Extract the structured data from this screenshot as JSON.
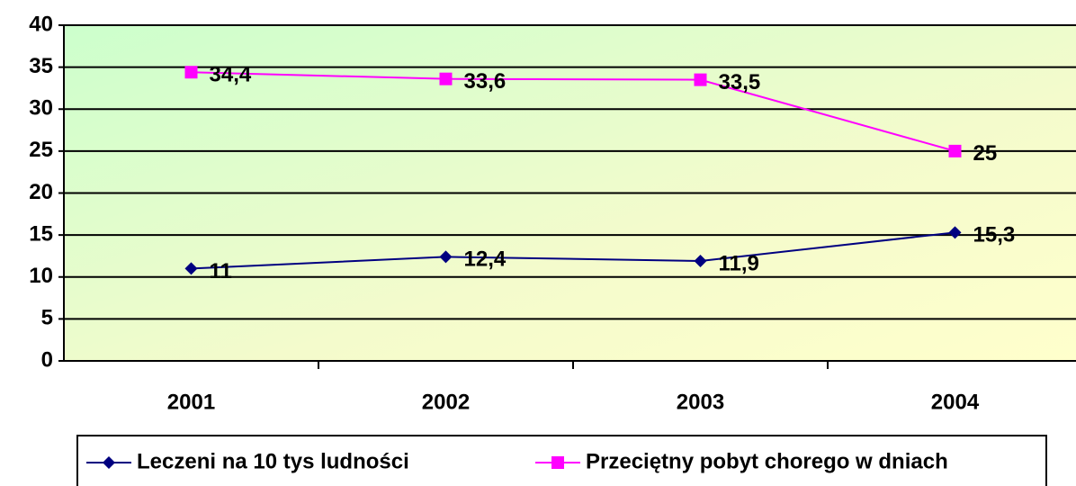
{
  "chart_data": {
    "type": "line",
    "categories": [
      "2001",
      "2002",
      "2003",
      "2004"
    ],
    "series": [
      {
        "name": "Leczeni na 10 tys ludności",
        "color": "#000080",
        "marker": "diamond",
        "values": [
          11,
          12.4,
          11.9,
          15.3
        ],
        "value_labels": [
          "11",
          "12,4",
          "11,9",
          "15,3"
        ]
      },
      {
        "name": "Przeciętny pobyt chorego w dniach",
        "color": "#ff00ff",
        "marker": "square",
        "values": [
          34.4,
          33.6,
          33.5,
          25
        ],
        "value_labels": [
          "34,4",
          "33,6",
          "33,5",
          "25"
        ]
      }
    ],
    "ylim": [
      0,
      40
    ],
    "yticks": [
      0,
      5,
      10,
      15,
      20,
      25,
      30,
      35,
      40
    ],
    "grid": true,
    "legend": "bottom"
  }
}
